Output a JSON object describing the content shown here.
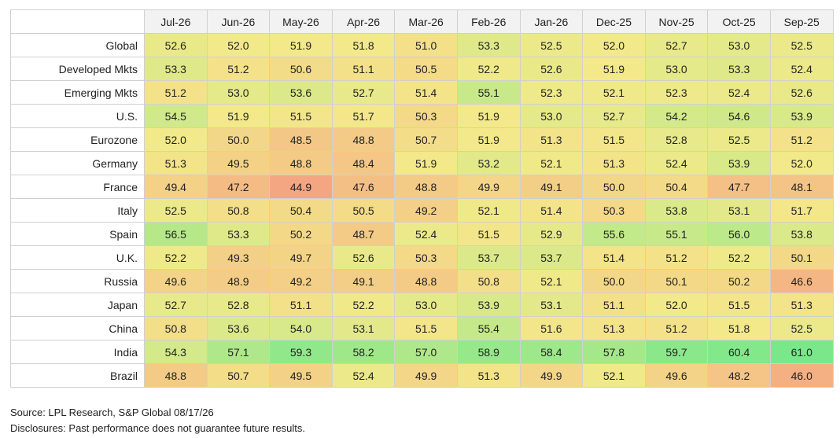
{
  "chart_data": {
    "type": "heatmap",
    "columns": [
      "Jul-26",
      "Jun-26",
      "May-26",
      "Apr-26",
      "Mar-26",
      "Feb-26",
      "Jan-26",
      "Dec-25",
      "Nov-25",
      "Oct-25",
      "Sep-25"
    ],
    "rows": [
      {
        "label": "Global",
        "values": [
          "52.6",
          "52.0",
          "51.9",
          "51.8",
          "51.0",
          "53.3",
          "52.5",
          "52.0",
          "52.7",
          "53.0",
          "52.5"
        ]
      },
      {
        "label": "Developed Mkts",
        "values": [
          "53.3",
          "51.2",
          "50.6",
          "51.1",
          "50.5",
          "52.2",
          "52.6",
          "51.9",
          "53.0",
          "53.3",
          "52.4"
        ]
      },
      {
        "label": "Emerging Mkts",
        "values": [
          "51.2",
          "53.0",
          "53.6",
          "52.7",
          "51.4",
          "55.1",
          "52.3",
          "52.1",
          "52.3",
          "52.4",
          "52.6"
        ]
      },
      {
        "label": "U.S.",
        "values": [
          "54.5",
          "51.9",
          "51.5",
          "51.7",
          "50.3",
          "51.9",
          "53.0",
          "52.7",
          "54.2",
          "54.6",
          "53.9"
        ]
      },
      {
        "label": "Eurozone",
        "values": [
          "52.0",
          "50.0",
          "48.5",
          "48.8",
          "50.7",
          "51.9",
          "51.3",
          "51.5",
          "52.8",
          "52.5",
          "51.2"
        ]
      },
      {
        "label": "Germany",
        "values": [
          "51.3",
          "49.5",
          "48.8",
          "48.4",
          "51.9",
          "53.2",
          "52.1",
          "51.3",
          "52.4",
          "53.9",
          "52.0"
        ]
      },
      {
        "label": "France",
        "values": [
          "49.4",
          "47.2",
          "44.9",
          "47.6",
          "48.8",
          "49.9",
          "49.1",
          "50.0",
          "50.4",
          "47.7",
          "48.1"
        ]
      },
      {
        "label": "Italy",
        "values": [
          "52.5",
          "50.8",
          "50.4",
          "50.5",
          "49.2",
          "52.1",
          "51.4",
          "50.3",
          "53.8",
          "53.1",
          "51.7"
        ]
      },
      {
        "label": "Spain",
        "values": [
          "56.5",
          "53.3",
          "50.2",
          "48.7",
          "52.4",
          "51.5",
          "52.9",
          "55.6",
          "55.1",
          "56.0",
          "53.8"
        ]
      },
      {
        "label": "U.K.",
        "values": [
          "52.2",
          "49.3",
          "49.7",
          "52.6",
          "50.3",
          "53.7",
          "53.7",
          "51.4",
          "51.2",
          "52.2",
          "50.1"
        ]
      },
      {
        "label": "Russia",
        "values": [
          "49.6",
          "48.9",
          "49.2",
          "49.1",
          "48.8",
          "50.8",
          "52.1",
          "50.0",
          "50.1",
          "50.2",
          "46.6"
        ]
      },
      {
        "label": "Japan",
        "values": [
          "52.7",
          "52.8",
          "51.1",
          "52.2",
          "53.0",
          "53.9",
          "53.1",
          "51.1",
          "52.0",
          "51.5",
          "51.3"
        ]
      },
      {
        "label": "China",
        "values": [
          "50.8",
          "53.6",
          "54.0",
          "53.1",
          "51.5",
          "55.4",
          "51.6",
          "51.3",
          "51.2",
          "51.8",
          "52.5"
        ]
      },
      {
        "label": "India",
        "values": [
          "54.3",
          "57.1",
          "59.3",
          "58.2",
          "57.0",
          "58.9",
          "58.4",
          "57.8",
          "59.7",
          "60.4",
          "61.0"
        ]
      },
      {
        "label": "Brazil",
        "values": [
          "48.8",
          "50.7",
          "49.5",
          "52.4",
          "49.9",
          "51.3",
          "49.9",
          "52.1",
          "49.6",
          "48.2",
          "46.0"
        ]
      }
    ],
    "color_scale": {
      "low": "#f4a582",
      "mid": "#f3e98a",
      "high": "#7ae88a"
    },
    "grid": true
  },
  "footer": {
    "source": "Source: LPL Research, S&P Global 08/17/26",
    "disclosures": "Disclosures: Past performance does not guarantee future results."
  }
}
